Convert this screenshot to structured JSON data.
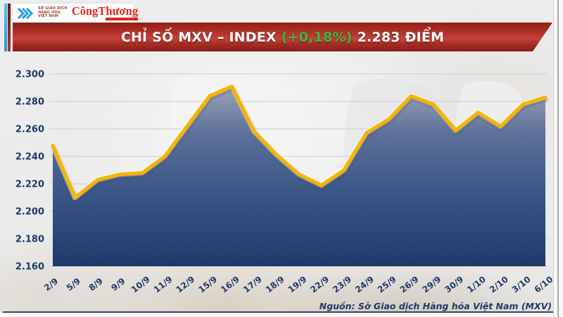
{
  "header": {
    "logo": {
      "mxv_lines": [
        "SỞ GIAO DỊCH",
        "HÀNG HÓA",
        "VIỆT NAM"
      ],
      "newspaper": "CôngThương",
      "chevron_color": "#2BA7E0",
      "newspaper_color": "#E02718"
    },
    "banner": {
      "title_main": "CHỈ SỐ MXV – INDEX",
      "title_change": "(+0,18%)",
      "title_value": "2.283 ĐIỂM",
      "change_color": "#3CB54A",
      "banner_color": "#B23228"
    }
  },
  "chart_data": {
    "type": "area",
    "title": "CHỈ SỐ MXV – INDEX (+0,18%) 2.283 ĐIỂM",
    "x": [
      "2/9",
      "5/9",
      "8/9",
      "9/9",
      "10/9",
      "11/9",
      "12/9",
      "15/9",
      "16/9",
      "17/9",
      "18/9",
      "19/9",
      "22/9",
      "23/9",
      "24/9",
      "25/9",
      "26/9",
      "29/9",
      "30/9",
      "1/10",
      "2/10",
      "3/10",
      "6/10"
    ],
    "values": [
      2.248,
      2.21,
      2.223,
      2.227,
      2.228,
      2.24,
      2.262,
      2.284,
      2.291,
      2.258,
      2.241,
      2.227,
      2.219,
      2.23,
      2.257,
      2.267,
      2.284,
      2.278,
      2.259,
      2.272,
      2.262,
      2.278,
      2.283
    ],
    "ylim": [
      2.16,
      2.3
    ],
    "yticks": [
      "2.300",
      "2.280",
      "2.260",
      "2.240",
      "2.220",
      "2.200",
      "2.180",
      "2.160"
    ],
    "ytick_values": [
      2.3,
      2.28,
      2.26,
      2.24,
      2.22,
      2.2,
      2.18,
      2.16
    ],
    "grid": true,
    "legend": "none",
    "line_color": "#F7B500",
    "fill_gradient": [
      "#A7AEBD",
      "#5C7099",
      "#3A5686",
      "#20396A"
    ],
    "axis_label_color": "#1E3A68",
    "grid_color": "#C7CDD6"
  },
  "footer": {
    "source": "Nguồn: Sở Giao dịch Hàng hóa Việt Nam (MXV)"
  }
}
